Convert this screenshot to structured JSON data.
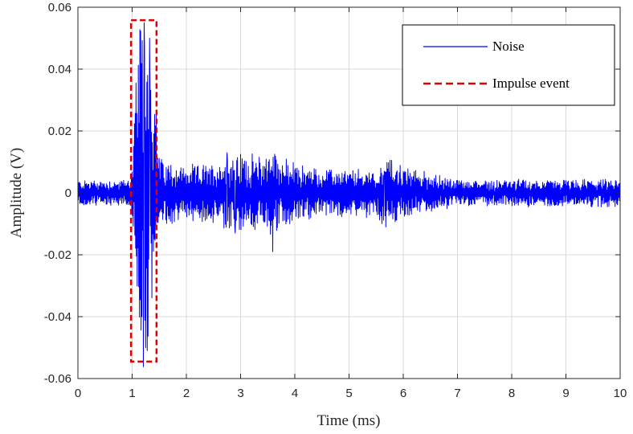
{
  "colors": {
    "noise": "#0000ff",
    "impulse": "#e00000",
    "grid": "#d9d9d9",
    "axis": "#262626"
  },
  "chart_data": {
    "type": "line",
    "title": "",
    "xlabel": "Time (ms)",
    "ylabel": "Amplitude (V)",
    "xlim": [
      0,
      10
    ],
    "ylim": [
      -0.06,
      0.06
    ],
    "grid": true,
    "legend_position": "top-right",
    "x_ticks": [
      0,
      1,
      2,
      3,
      4,
      5,
      6,
      7,
      8,
      9,
      10
    ],
    "x_tick_labels": [
      "0",
      "1",
      "2",
      "3",
      "4",
      "5",
      "6",
      "7",
      "8",
      "9",
      "10"
    ],
    "y_ticks": [
      0.06,
      0.04,
      0.02,
      0,
      -0.02,
      -0.04,
      -0.06
    ],
    "y_tick_labels": [
      "0.06",
      "0.04",
      "0.02",
      "0",
      "-0.02",
      "-0.04",
      "-0.06"
    ],
    "legend": [
      "Noise",
      "Impulse event"
    ],
    "series": [
      {
        "name": "Noise",
        "style": "solid",
        "x_start": 0,
        "x_end": 10,
        "envelope": [
          [
            0,
            0.004
          ],
          [
            0.9,
            0.004
          ],
          [
            1.0,
            0.008
          ],
          [
            1.1,
            0.045
          ],
          [
            1.2,
            0.055
          ],
          [
            1.3,
            0.053
          ],
          [
            1.4,
            0.035
          ],
          [
            1.5,
            0.012
          ],
          [
            1.6,
            0.01
          ],
          [
            2.0,
            0.008
          ],
          [
            2.5,
            0.009
          ],
          [
            2.8,
            0.012
          ],
          [
            3.0,
            0.012
          ],
          [
            3.3,
            0.011
          ],
          [
            3.6,
            0.014
          ],
          [
            3.8,
            0.01
          ],
          [
            4.5,
            0.007
          ],
          [
            5.5,
            0.007
          ],
          [
            5.7,
            0.011
          ],
          [
            6.0,
            0.008
          ],
          [
            7.0,
            0.004
          ],
          [
            8.0,
            0.004
          ],
          [
            9.0,
            0.004
          ],
          [
            10.0,
            0.004
          ]
        ],
        "peaks": [
          {
            "x": 1.22,
            "y": 0.055
          },
          {
            "x": 1.28,
            "y": -0.051
          },
          {
            "x": 1.18,
            "y": -0.04
          },
          {
            "x": 1.32,
            "y": 0.05
          },
          {
            "x": 2.75,
            "y": 0.013
          },
          {
            "x": 2.9,
            "y": -0.013
          },
          {
            "x": 3.59,
            "y": -0.019
          },
          {
            "x": 5.68,
            "y": -0.011
          },
          {
            "x": 5.65,
            "y": 0.007
          }
        ]
      },
      {
        "name": "Impulse event",
        "style": "dashed",
        "rect_x": [
          0.98,
          1.45
        ],
        "rect_y": [
          -0.0545,
          0.0558
        ]
      }
    ]
  }
}
